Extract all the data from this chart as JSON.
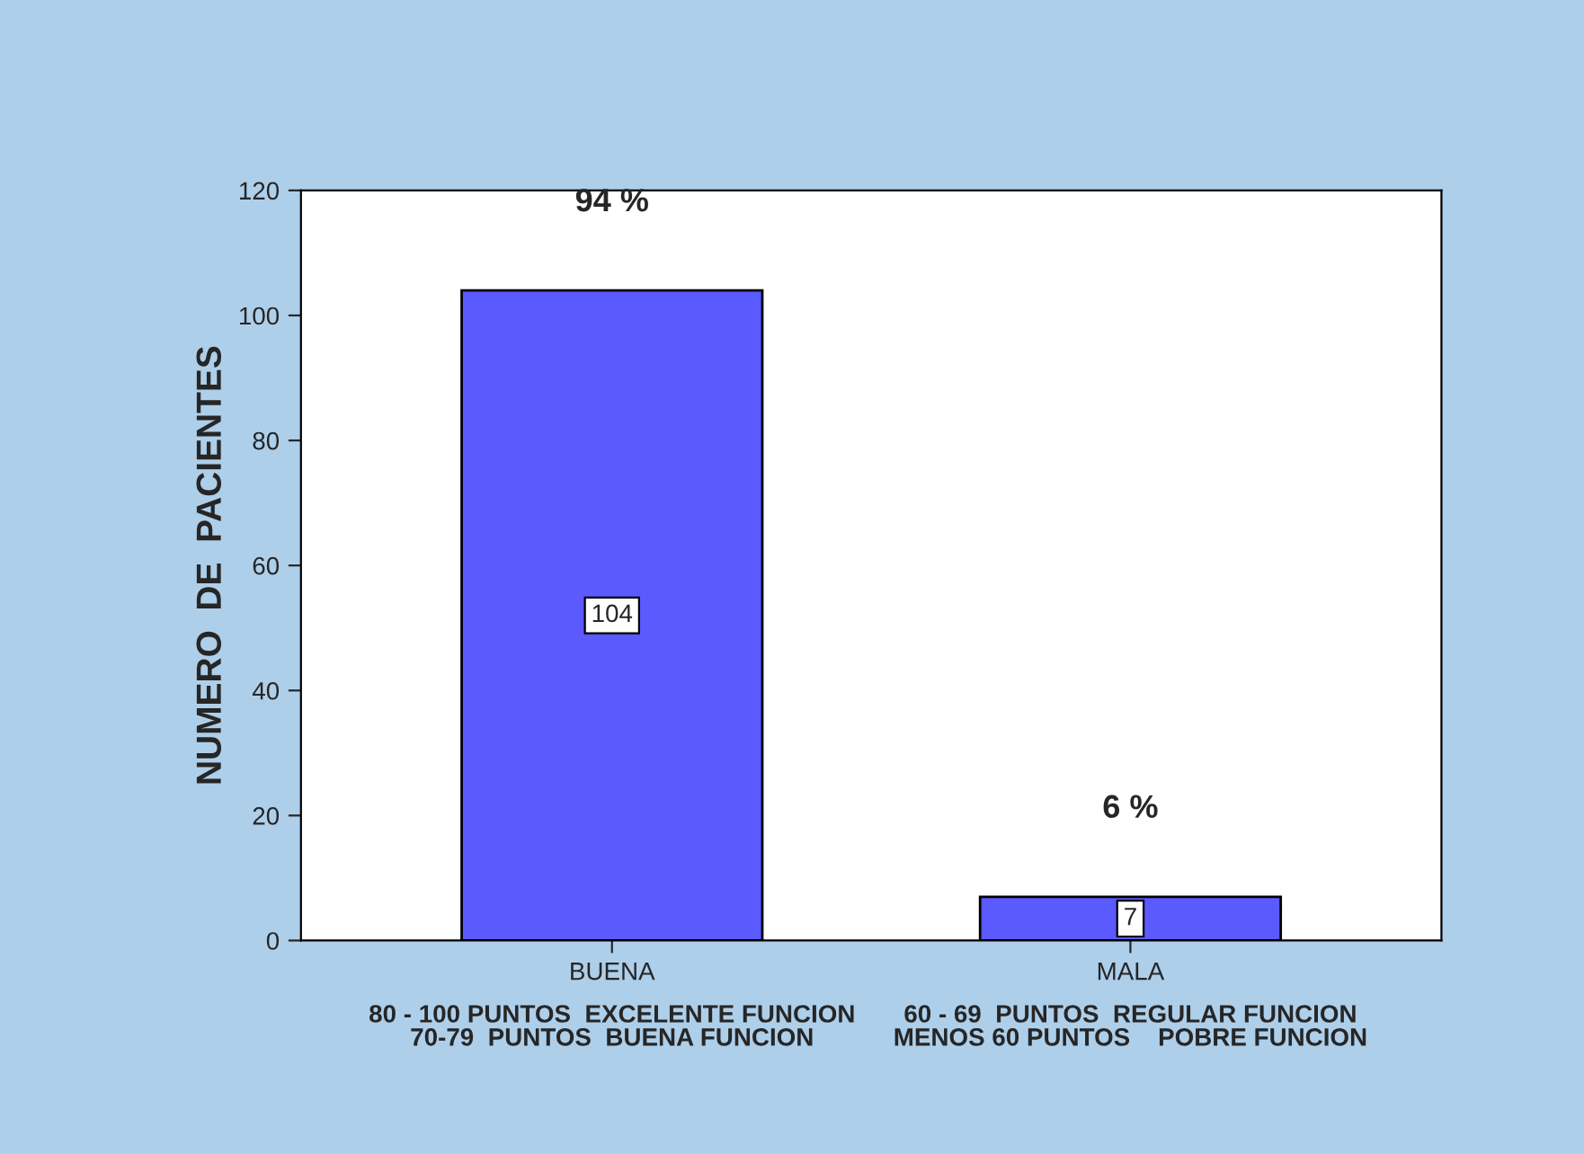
{
  "chart_data": {
    "type": "bar",
    "ylabel": "NUMERO  DE  PACIENTES",
    "categories": [
      "BUENA",
      "MALA"
    ],
    "values": [
      104,
      7
    ],
    "color": "#5a5aff",
    "data_labels": true,
    "ylim": [
      0,
      120
    ],
    "yticks": [
      0,
      20,
      40,
      60,
      80,
      100,
      120
    ],
    "grid": false,
    "legend": false,
    "annotations": [
      "94 %",
      "6 %",
      "80 - 100 PUNTOS  EXCELENTE FUNCION\n70-79  PUNTOS  BUENA FUNCION",
      "60 - 69  PUNTOS  REGULAR FUNCION\nMENOS 60 PUNTOS    POBRE FUNCION"
    ]
  }
}
